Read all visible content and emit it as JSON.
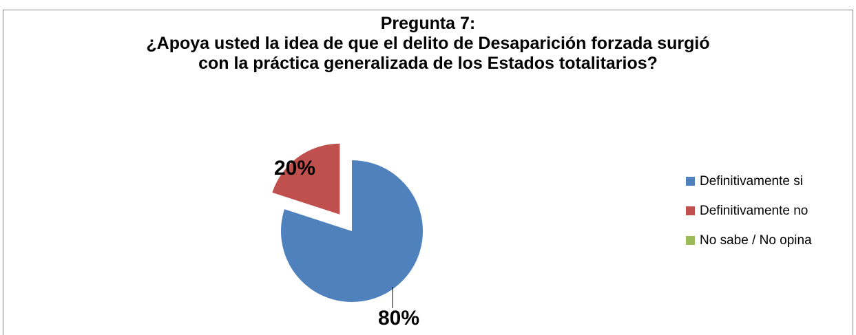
{
  "chart_data": {
    "type": "pie",
    "title_lines": [
      "Pregunta 7:",
      "¿Apoya usted la idea de que el delito de Desaparición forzada surgió",
      "con la práctica generalizada de los Estados totalitarios?"
    ],
    "categories": [
      "Definitivamente si",
      "Definitivamente no",
      "No sabe / No opina"
    ],
    "values": [
      80,
      20,
      0
    ],
    "data_labels": [
      "80%",
      "20%",
      ""
    ],
    "colors": [
      "#4F81BD",
      "#C0504D",
      "#9BBB59"
    ],
    "exploded": [
      false,
      true,
      false
    ],
    "legend_position": "right"
  }
}
